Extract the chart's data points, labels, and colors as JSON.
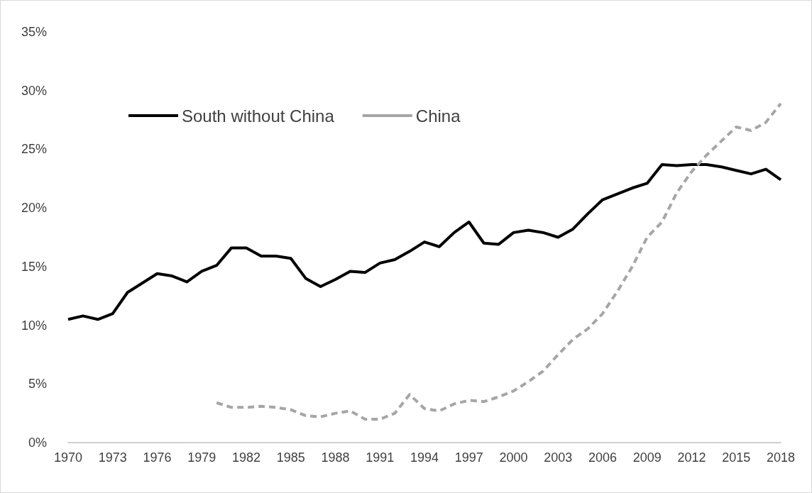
{
  "chart_data": {
    "type": "line",
    "x": [
      1970,
      1971,
      1972,
      1973,
      1974,
      1975,
      1976,
      1977,
      1978,
      1979,
      1980,
      1981,
      1982,
      1983,
      1984,
      1985,
      1986,
      1987,
      1988,
      1989,
      1990,
      1991,
      1992,
      1993,
      1994,
      1995,
      1996,
      1997,
      1998,
      1999,
      2000,
      2001,
      2002,
      2003,
      2004,
      2005,
      2006,
      2007,
      2008,
      2009,
      2010,
      2011,
      2012,
      2013,
      2014,
      2015,
      2016,
      2017,
      2018
    ],
    "series": [
      {
        "name": "South without China",
        "color": "#000000",
        "line_style": "solid",
        "values": [
          10.5,
          10.8,
          10.5,
          11.0,
          12.8,
          13.6,
          14.4,
          14.2,
          13.7,
          14.6,
          15.1,
          16.6,
          16.6,
          15.9,
          15.9,
          15.7,
          14.0,
          13.3,
          13.9,
          14.6,
          14.5,
          15.3,
          15.6,
          16.3,
          17.1,
          16.7,
          17.9,
          18.8,
          17.0,
          16.9,
          17.9,
          18.1,
          17.9,
          17.5,
          18.2,
          19.5,
          20.7,
          21.2,
          21.7,
          22.1,
          23.7,
          23.6,
          23.7,
          23.7,
          23.5,
          23.2,
          22.9,
          23.3,
          22.4
        ]
      },
      {
        "name": "China",
        "color": "#a6a6a6",
        "line_style": "dashed",
        "values": [
          null,
          null,
          null,
          null,
          null,
          null,
          null,
          null,
          null,
          null,
          3.4,
          3.0,
          3.0,
          3.1,
          3.0,
          2.8,
          2.3,
          2.2,
          2.5,
          2.7,
          2.0,
          2.0,
          2.5,
          4.1,
          2.9,
          2.7,
          3.3,
          3.6,
          3.5,
          3.9,
          4.4,
          5.2,
          6.1,
          7.5,
          8.8,
          9.7,
          11.0,
          12.9,
          15.0,
          17.5,
          18.8,
          21.3,
          23.1,
          24.5,
          25.7,
          26.9,
          26.6,
          27.3,
          28.9
        ]
      }
    ],
    "xlim": [
      1970,
      2018
    ],
    "xticks": [
      1970,
      1973,
      1976,
      1979,
      1982,
      1985,
      1988,
      1991,
      1994,
      1997,
      2000,
      2003,
      2006,
      2009,
      2012,
      2015,
      2018
    ],
    "ylim": [
      0,
      35
    ],
    "yticks": [
      {
        "value": 0,
        "label": "0%"
      },
      {
        "value": 5,
        "label": "5%"
      },
      {
        "value": 10,
        "label": "10%"
      },
      {
        "value": 15,
        "label": "15%"
      },
      {
        "value": 20,
        "label": "20%"
      },
      {
        "value": 25,
        "label": "25%"
      },
      {
        "value": 30,
        "label": "30%"
      },
      {
        "value": 35,
        "label": "35%"
      }
    ],
    "grid": false,
    "legend": "top left",
    "marker": "none"
  }
}
